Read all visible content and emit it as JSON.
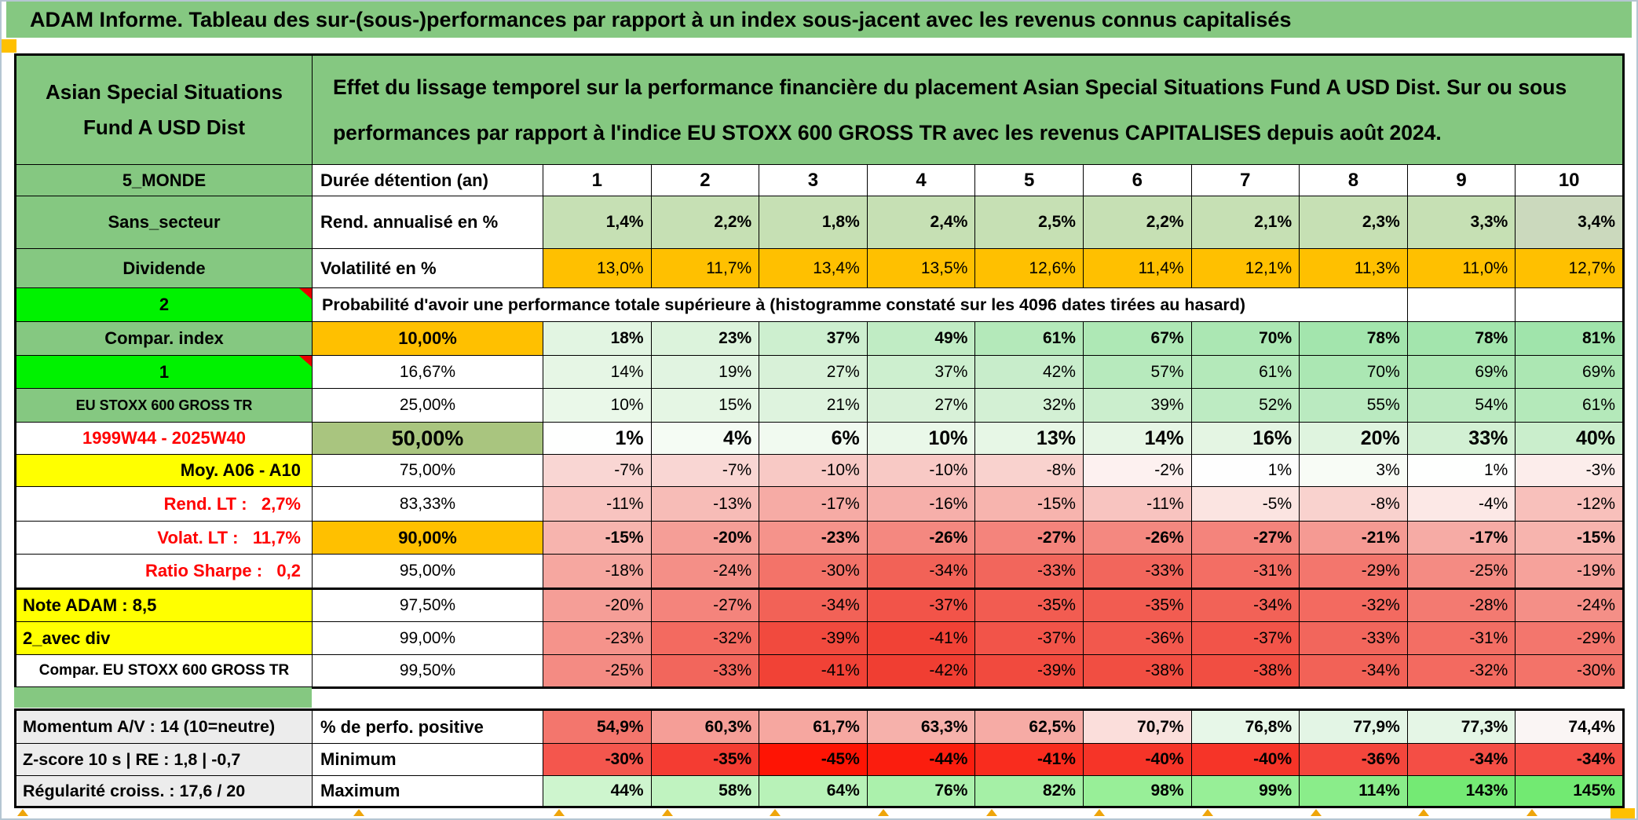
{
  "title": "ADAM Informe. Tableau des sur-(sous-)performances par rapport à un index sous-jacent avec les revenus connus capitalisés",
  "header": {
    "fund_name": "Asian Special Situations\nFund A USD Dist",
    "description": "Effet du lissage temporel sur la performance financière du placement Asian Special Situations Fund A USD Dist. Sur ou sous performances par rapport à l'indice EU STOXX 600 GROSS TR avec les revenus CAPITALISES depuis août 2024."
  },
  "colors": {
    "header_green": "#85c881",
    "vivid_green": "#00f200",
    "orange": "#ffc000",
    "yellow": "#ffff00",
    "olive_green": "#a9c57f",
    "label_gray": "#ececec",
    "rend_row_green": "#c6e0b4",
    "red_text": "#ff0000",
    "marker_orange": "#efa50a"
  },
  "decorations": {
    "comment_marker": "red-corner-triangle on cells '2' and '1'",
    "hidden_row_markers": "orange-caret",
    "corner_squares": "orange-square top-left and bottom-right"
  },
  "table": {
    "main_rows": [
      {
        "label": "5_MONDE",
        "lv": "green",
        "header": "Durée détention (an)",
        "hv": "left",
        "cv": "colnum",
        "cells": [
          "1",
          "2",
          "3",
          "4",
          "5",
          "6",
          "7",
          "8",
          "9",
          "10"
        ],
        "bg": [
          "#ffffff",
          "#ffffff",
          "#ffffff",
          "#ffffff",
          "#ffffff",
          "#ffffff",
          "#ffffff",
          "#ffffff",
          "#ffffff",
          "#ffffff"
        ]
      },
      {
        "label": "Sans_secteur",
        "lv": "green",
        "header": "Rend. annualisé en %",
        "hv": "left",
        "cv": "bold",
        "cells": [
          "1,4%",
          "2,2%",
          "1,8%",
          "2,4%",
          "2,5%",
          "2,2%",
          "2,1%",
          "2,3%",
          "3,3%",
          "3,4%"
        ],
        "bg": [
          "#c6e0b4",
          "#c6e0b4",
          "#c6e0b4",
          "#c6e0b4",
          "#c6e0b4",
          "#c6e0b4",
          "#c6e0b4",
          "#c6e0b4",
          "#c6e0b4",
          "#cbd9bd"
        ]
      },
      {
        "label": "Dividende",
        "lv": "green",
        "header": "Volatilité en %",
        "hv": "left",
        "cv": "norm",
        "cells": [
          "13,0%",
          "11,7%",
          "13,4%",
          "13,5%",
          "12,6%",
          "11,4%",
          "12,1%",
          "11,3%",
          "11,0%",
          "12,7%"
        ],
        "bg": [
          "#ffc000",
          "#ffc000",
          "#ffc000",
          "#ffc000",
          "#ffc000",
          "#ffc000",
          "#ffc000",
          "#ffc000",
          "#ffc000",
          "#ffc000"
        ]
      },
      {
        "type": "span",
        "label": "2",
        "lv": "vivid",
        "note": true,
        "span_text": "Probabilité d'avoir une performance totale supérieure à (histogramme constaté sur les 4096 dates tirées au hasard)",
        "tail": [
          "",
          ""
        ]
      },
      {
        "label": "Compar. index",
        "lv": "green",
        "header": "10,00%",
        "hv": "orange",
        "cv": "bold",
        "cells": [
          "18%",
          "23%",
          "37%",
          "49%",
          "61%",
          "67%",
          "70%",
          "78%",
          "78%",
          "81%"
        ],
        "bg": [
          "#e2f5e2",
          "#dcf3dc",
          "#cdefcf",
          "#c0ecc4",
          "#b4e9ba",
          "#aee8b5",
          "#abe7b3",
          "#a3e5ad",
          "#a3e5ad",
          "#a0e4ab"
        ]
      },
      {
        "label": "1",
        "lv": "vivid",
        "note": true,
        "header": "16,67%",
        "hv": "center",
        "cv": "norm",
        "cells": [
          "14%",
          "19%",
          "27%",
          "37%",
          "42%",
          "57%",
          "61%",
          "70%",
          "69%",
          "69%"
        ],
        "bg": [
          "#e6f6e5",
          "#e1f4e1",
          "#d8f1d8",
          "#cdefcf",
          "#c8edcb",
          "#b7eabd",
          "#b4e9ba",
          "#abe7b3",
          "#ace7b3",
          "#ace7b3"
        ]
      },
      {
        "label": "EU STOXX 600 GROSS TR",
        "lv": "green-sm",
        "header": "25,00%",
        "hv": "center",
        "cv": "norm",
        "cells": [
          "10%",
          "15%",
          "21%",
          "27%",
          "32%",
          "39%",
          "52%",
          "55%",
          "54%",
          "61%"
        ],
        "bg": [
          "#eaf8e9",
          "#e5f6e4",
          "#def3de",
          "#d8f1d8",
          "#d3f0d4",
          "#cbeecd",
          "#bdebc2",
          "#baeac0",
          "#bbeac0",
          "#b4e9ba"
        ]
      },
      {
        "label": "1999W44 - 2025W40",
        "lv": "red-c",
        "header": "50,00%",
        "hv": "olive",
        "cv": "big",
        "cells": [
          "1%",
          "4%",
          "6%",
          "10%",
          "13%",
          "14%",
          "16%",
          "20%",
          "33%",
          "40%"
        ],
        "bg": [
          "#fefffe",
          "#f5fcf4",
          "#f1faf0",
          "#eaf8e9",
          "#e7f7e6",
          "#e6f6e5",
          "#e4f5e3",
          "#dff4df",
          "#d2f0d3",
          "#caeecc"
        ]
      },
      {
        "label": "Moy. A06 - A10",
        "lv": "yellow-r",
        "header": "75,00%",
        "hv": "center",
        "cv": "norm",
        "cells": [
          "-7%",
          "-7%",
          "-10%",
          "-10%",
          "-8%",
          "-2%",
          "1%",
          "3%",
          "1%",
          "-3%"
        ],
        "bg": [
          "#f9d6d3",
          "#f9d6d3",
          "#f8c9c5",
          "#f8c9c5",
          "#f9d2ce",
          "#fdf1f0",
          "#fefefe",
          "#f8fcf6",
          "#fefffe",
          "#fcedeb"
        ]
      },
      {
        "label": "Rend. LT :   2,7%",
        "lv": "red-r",
        "header": "83,33%",
        "hv": "center",
        "cv": "norm",
        "cells": [
          "-11%",
          "-13%",
          "-17%",
          "-16%",
          "-15%",
          "-11%",
          "-5%",
          "-8%",
          "-4%",
          "-12%"
        ],
        "bg": [
          "#f8c4c0",
          "#f7bcb7",
          "#f6aba5",
          "#f6afaa",
          "#f7b4ae",
          "#f8c4c0",
          "#fbe4e1",
          "#f9d2ce",
          "#fce8e6",
          "#f8c0bb"
        ]
      },
      {
        "label": "Volat. LT :   11,7%",
        "lv": "red-r",
        "header": "90,00%",
        "hv": "orange",
        "cv": "bold",
        "cells": [
          "-15%",
          "-20%",
          "-23%",
          "-26%",
          "-27%",
          "-26%",
          "-27%",
          "-21%",
          "-17%",
          "-15%"
        ],
        "bg": [
          "#f7b4ae",
          "#f59e97",
          "#f5938b",
          "#f48880",
          "#f4847c",
          "#f48880",
          "#f4847c",
          "#f59a93",
          "#f6aba5",
          "#f7b4ae"
        ]
      },
      {
        "label": "Ratio Sharpe :   0,2",
        "lv": "red-r",
        "header": "95,00%",
        "hv": "center",
        "cv": "norm",
        "cells": [
          "-18%",
          "-24%",
          "-30%",
          "-34%",
          "-33%",
          "-33%",
          "-31%",
          "-29%",
          "-25%",
          "-19%"
        ],
        "bg": [
          "#f6a7a0",
          "#f48f87",
          "#f37369",
          "#f26257",
          "#f2665c",
          "#f2665c",
          "#f36e64",
          "#f3766d",
          "#f48b83",
          "#f6a29b"
        ]
      },
      {
        "label": "Note ADAM : 8,5",
        "lv": "yellow-l",
        "header": "97,50%",
        "hv": "center",
        "cv": "norm",
        "cells": [
          "-20%",
          "-27%",
          "-34%",
          "-37%",
          "-35%",
          "-35%",
          "-34%",
          "-32%",
          "-28%",
          "-24%"
        ],
        "bg": [
          "#f59e97",
          "#f4847c",
          "#f26257",
          "#f25449",
          "#f25c51",
          "#f25c51",
          "#f26257",
          "#f36a60",
          "#f37a71",
          "#f48f87"
        ]
      },
      {
        "label": "2_avec div",
        "lv": "yellow-l",
        "header": "99,00%",
        "hv": "center",
        "cv": "norm",
        "cells": [
          "-23%",
          "-32%",
          "-39%",
          "-41%",
          "-37%",
          "-36%",
          "-37%",
          "-33%",
          "-31%",
          "-29%"
        ],
        "bg": [
          "#f5938b",
          "#f36a60",
          "#f14a3e",
          "#f14236",
          "#f25449",
          "#f2584d",
          "#f25449",
          "#f2665c",
          "#f36e64",
          "#f3766d"
        ]
      },
      {
        "label": "Compar. EU STOXX 600 GROSS TR",
        "lv": "white-sm",
        "header": "99,50%",
        "hv": "center",
        "cv": "norm",
        "cells": [
          "-25%",
          "-33%",
          "-41%",
          "-42%",
          "-39%",
          "-38%",
          "-38%",
          "-34%",
          "-32%",
          "-30%"
        ],
        "bg": [
          "#f48b83",
          "#f2665c",
          "#f14236",
          "#f03e32",
          "#f14a3e",
          "#f14e42",
          "#f14e42",
          "#f26257",
          "#f36a60",
          "#f37369"
        ]
      }
    ],
    "bottom_rows": [
      {
        "label": "Momentum A/V : 14 (10=neutre)",
        "lv": "gray",
        "header": "% de perfo. positive",
        "hv": "left",
        "cv": "bold",
        "cells": [
          "54,9%",
          "60,3%",
          "61,7%",
          "63,3%",
          "62,5%",
          "70,7%",
          "76,8%",
          "77,9%",
          "77,3%",
          "74,4%"
        ],
        "bg": [
          "#f3766d",
          "#f59e97",
          "#f6a7a0",
          "#f6b1ab",
          "#f6aba5",
          "#fbdedb",
          "#e7f7e8",
          "#e3f5e5",
          "#e5f6e6",
          "#faf5f4"
        ]
      },
      {
        "label": "Z-score 10 s | RE : 1,8 | -0,7",
        "lv": "gray",
        "header": "Minimum",
        "hv": "left",
        "cv": "bold",
        "cells": [
          "-30%",
          "-35%",
          "-45%",
          "-44%",
          "-41%",
          "-40%",
          "-40%",
          "-36%",
          "-34%",
          "-34%"
        ],
        "bg": [
          "#f4564d",
          "#f43c32",
          "#fe1404",
          "#fb1d0e",
          "#f92c1e",
          "#f63428",
          "#f63428",
          "#f4463c",
          "#f44e45",
          "#f44e45"
        ]
      },
      {
        "label": "Régularité croiss. : 17,6 / 20",
        "lv": "gray",
        "header": "Maximum",
        "hv": "left",
        "cv": "bold",
        "cells": [
          "44%",
          "58%",
          "64%",
          "76%",
          "82%",
          "98%",
          "99%",
          "114%",
          "143%",
          "145%"
        ],
        "bg": [
          "#cef5ce",
          "#c0f3c0",
          "#b8f2b8",
          "#abf1ac",
          "#a5f0a6",
          "#98ef98",
          "#97ef97",
          "#8aed8a",
          "#74ea74",
          "#72ea72"
        ]
      }
    ]
  }
}
